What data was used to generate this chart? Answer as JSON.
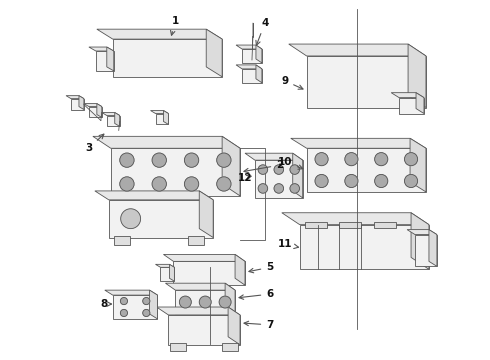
{
  "bg_color": "#ffffff",
  "line_color": "#555555",
  "label_color": "#111111",
  "fig_width": 4.9,
  "fig_height": 3.6,
  "dpi": 100,
  "lw": 0.6,
  "label_fontsize": 7.5
}
